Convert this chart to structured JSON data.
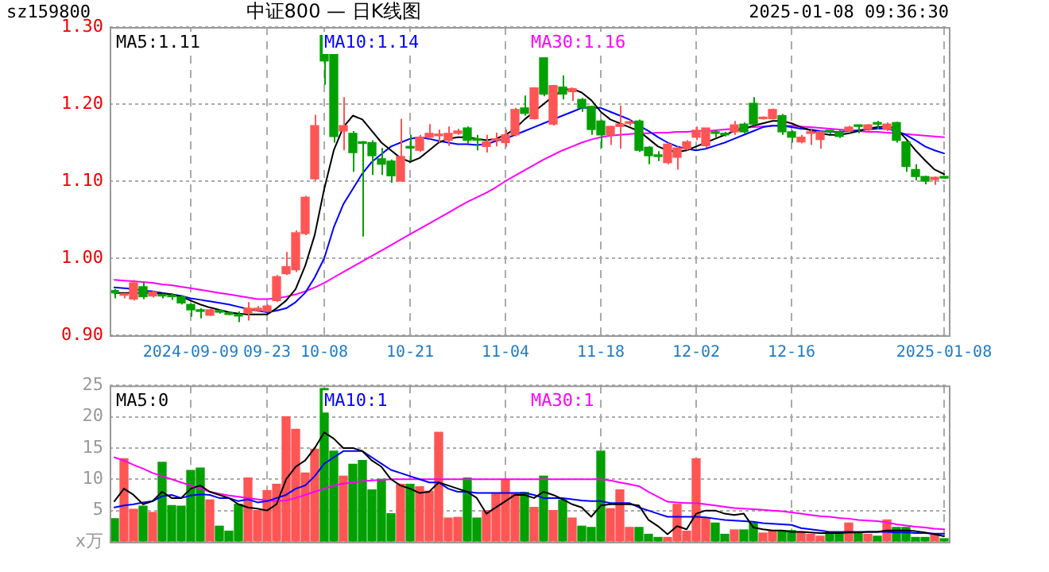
{
  "chart_data": [
    {
      "type": "candlestick",
      "title": "中证800 — 日K线图",
      "annotations": [
        "sz159800",
        "2025-01-08 09:36:30"
      ],
      "categories": [
        null,
        null,
        null,
        null,
        null,
        null,
        null,
        null,
        "2024-09-09",
        null,
        null,
        null,
        null,
        null,
        null,
        null,
        "09-23",
        null,
        null,
        null,
        null,
        null,
        "10-08",
        null,
        null,
        null,
        null,
        null,
        null,
        null,
        null,
        "10-21",
        null,
        null,
        null,
        null,
        null,
        null,
        null,
        null,
        null,
        "11-04",
        null,
        null,
        null,
        null,
        null,
        null,
        null,
        null,
        null,
        "11-18",
        null,
        null,
        null,
        null,
        null,
        null,
        null,
        null,
        null,
        "12-02",
        null,
        null,
        null,
        null,
        null,
        null,
        null,
        null,
        null,
        "12-16",
        null,
        null,
        null,
        null,
        null,
        null,
        null,
        null,
        null,
        null,
        null,
        null,
        null,
        null,
        null,
        "2025-01-08"
      ],
      "ohlc": [
        [
          0.958,
          0.96,
          0.948,
          0.955
        ],
        [
          0.952,
          0.955,
          0.948,
          0.953
        ],
        [
          0.947,
          0.972,
          0.945,
          0.968
        ],
        [
          0.963,
          0.969,
          0.947,
          0.95
        ],
        [
          0.951,
          0.958,
          0.949,
          0.956
        ],
        [
          0.952,
          0.954,
          0.948,
          0.951
        ],
        [
          0.951,
          0.954,
          0.946,
          0.95
        ],
        [
          0.95,
          0.952,
          0.94,
          0.942
        ],
        [
          0.94,
          0.941,
          0.924,
          0.933
        ],
        [
          0.932,
          0.935,
          0.922,
          0.931
        ],
        [
          0.926,
          0.934,
          0.925,
          0.933
        ],
        [
          0.932,
          0.934,
          0.928,
          0.93
        ],
        [
          0.928,
          0.93,
          0.926,
          0.927
        ],
        [
          0.926,
          0.931,
          0.917,
          0.925
        ],
        [
          0.929,
          0.943,
          0.919,
          0.935
        ],
        [
          0.932,
          0.938,
          0.93,
          0.935
        ],
        [
          0.931,
          0.94,
          0.93,
          0.938
        ],
        [
          0.945,
          0.978,
          0.943,
          0.976
        ],
        [
          0.98,
          1.008,
          0.978,
          0.989
        ],
        [
          0.985,
          1.036,
          0.982,
          1.033
        ],
        [
          1.032,
          1.081,
          1.03,
          1.079
        ],
        [
          1.103,
          1.186,
          1.101,
          1.172
        ],
        [
          1.289,
          1.289,
          1.225,
          1.256
        ],
        [
          1.269,
          1.269,
          1.15,
          1.158
        ],
        [
          1.165,
          1.209,
          1.14,
          1.172
        ],
        [
          1.162,
          1.165,
          1.112,
          1.137
        ],
        [
          1.15,
          1.152,
          1.028,
          1.149
        ],
        [
          1.15,
          1.153,
          1.108,
          1.133
        ],
        [
          1.129,
          1.143,
          1.108,
          1.122
        ],
        [
          1.126,
          1.128,
          1.098,
          1.107
        ],
        [
          1.1,
          1.181,
          1.1,
          1.132
        ],
        [
          1.144,
          1.16,
          1.126,
          1.143
        ],
        [
          1.14,
          1.16,
          1.138,
          1.157
        ],
        [
          1.157,
          1.174,
          1.155,
          1.162
        ],
        [
          1.159,
          1.167,
          1.15,
          1.16
        ],
        [
          1.153,
          1.171,
          1.146,
          1.162
        ],
        [
          1.162,
          1.168,
          1.16,
          1.165
        ],
        [
          1.169,
          1.171,
          1.149,
          1.153
        ],
        [
          1.154,
          1.16,
          1.14,
          1.153
        ],
        [
          1.145,
          1.16,
          1.137,
          1.151
        ],
        [
          1.153,
          1.163,
          1.145,
          1.154
        ],
        [
          1.15,
          1.167,
          1.144,
          1.16
        ],
        [
          1.16,
          1.195,
          1.158,
          1.193
        ],
        [
          1.195,
          1.211,
          1.185,
          1.188
        ],
        [
          1.181,
          1.222,
          1.18,
          1.221
        ],
        [
          1.26,
          1.26,
          1.21,
          1.213
        ],
        [
          1.174,
          1.225,
          1.172,
          1.224
        ],
        [
          1.222,
          1.237,
          1.206,
          1.213
        ],
        [
          1.216,
          1.221,
          1.204,
          1.22
        ],
        [
          1.206,
          1.208,
          1.19,
          1.195
        ],
        [
          1.197,
          1.198,
          1.16,
          1.167
        ],
        [
          1.178,
          1.18,
          1.143,
          1.16
        ],
        [
          1.16,
          1.172,
          1.147,
          1.171
        ],
        [
          1.171,
          1.198,
          1.142,
          1.174
        ],
        [
          1.175,
          1.18,
          1.172,
          1.176
        ],
        [
          1.178,
          1.18,
          1.138,
          1.14
        ],
        [
          1.144,
          1.145,
          1.122,
          1.133
        ],
        [
          1.133,
          1.139,
          1.126,
          1.132
        ],
        [
          1.124,
          1.15,
          1.122,
          1.148
        ],
        [
          1.131,
          1.146,
          1.115,
          1.143
        ],
        [
          1.142,
          1.153,
          1.14,
          1.151
        ],
        [
          1.157,
          1.171,
          1.153,
          1.166
        ],
        [
          1.146,
          1.169,
          1.143,
          1.169
        ],
        [
          1.163,
          1.167,
          1.157,
          1.162
        ],
        [
          1.161,
          1.164,
          1.158,
          1.16
        ],
        [
          1.164,
          1.178,
          1.16,
          1.173
        ],
        [
          1.174,
          1.176,
          1.162,
          1.164
        ],
        [
          1.201,
          1.209,
          1.172,
          1.174
        ],
        [
          1.181,
          1.184,
          1.18,
          1.182
        ],
        [
          1.181,
          1.194,
          1.18,
          1.193
        ],
        [
          1.185,
          1.187,
          1.16,
          1.164
        ],
        [
          1.164,
          1.166,
          1.15,
          1.157
        ],
        [
          1.151,
          1.16,
          1.149,
          1.157
        ],
        [
          1.162,
          1.167,
          1.147,
          1.163
        ],
        [
          1.154,
          1.165,
          1.142,
          1.164
        ],
        [
          1.165,
          1.166,
          1.161,
          1.164
        ],
        [
          1.164,
          1.166,
          1.156,
          1.158
        ],
        [
          1.165,
          1.172,
          1.164,
          1.17
        ],
        [
          1.172,
          1.173,
          1.162,
          1.171
        ],
        [
          1.167,
          1.174,
          1.165,
          1.173
        ],
        [
          1.175,
          1.178,
          1.167,
          1.174
        ],
        [
          1.167,
          1.176,
          1.165,
          1.174
        ],
        [
          1.176,
          1.177,
          1.15,
          1.153
        ],
        [
          1.151,
          1.152,
          1.112,
          1.119
        ],
        [
          1.115,
          1.122,
          1.101,
          1.106
        ],
        [
          1.106,
          1.107,
          1.096,
          1.1
        ],
        [
          1.102,
          1.106,
          1.095,
          1.105
        ],
        [
          1.105,
          1.106,
          1.103,
          1.104
        ]
      ],
      "colors": [
        "#00a000",
        "#ff5555",
        "#ff5555",
        "#00a000",
        "#ff5555",
        "#00a000",
        "#00a000",
        "#00a000",
        "#00a000",
        "#00a000",
        "#ff5555",
        "#00a000",
        "#00a000",
        "#00a000",
        "#ff5555",
        "#ff5555",
        "#ff5555",
        "#ff5555",
        "#ff5555",
        "#ff5555",
        "#ff5555",
        "#ff5555",
        "#00a000",
        "#00a000",
        "#ff5555",
        "#00a000",
        "#00a000",
        "#00a000",
        "#00a000",
        "#00a000",
        "#ff5555",
        "#00a000",
        "#ff5555",
        "#ff5555",
        "#ff5555",
        "#ff5555",
        "#ff5555",
        "#00a000",
        "#00a000",
        "#ff5555",
        "#ff5555",
        "#ff5555",
        "#ff5555",
        "#00a000",
        "#ff5555",
        "#00a000",
        "#ff5555",
        "#00a000",
        "#ff5555",
        "#00a000",
        "#00a000",
        "#00a000",
        "#ff5555",
        "#ff5555",
        "#ff5555",
        "#00a000",
        "#00a000",
        "#00a000",
        "#ff5555",
        "#ff5555",
        "#ff5555",
        "#ff5555",
        "#ff5555",
        "#00a000",
        "#00a000",
        "#ff5555",
        "#00a000",
        "#00a000",
        "#ff5555",
        "#ff5555",
        "#00a000",
        "#00a000",
        "#ff5555",
        "#ff5555",
        "#ff5555",
        "#00a000",
        "#00a000",
        "#ff5555",
        "#00a000",
        "#ff5555",
        "#00a000",
        "#ff5555",
        "#00a000",
        "#00a000",
        "#00a000",
        "#00a000",
        "#ff5555",
        "#00a000"
      ],
      "series": [
        {
          "type": "line",
          "name": "MA5:1.11",
          "color": "#000000",
          "values": [
            0.955,
            0.955,
            0.955,
            0.955,
            0.955,
            0.954,
            0.953,
            0.95,
            0.945,
            0.94,
            0.936,
            0.933,
            0.93,
            0.928,
            0.927,
            0.927,
            0.927,
            0.935,
            0.945,
            0.96,
            0.99,
            1.03,
            1.09,
            1.14,
            1.17,
            1.185,
            1.18,
            1.165,
            1.15,
            1.14,
            1.13,
            1.125,
            1.13,
            1.14,
            1.15,
            1.155,
            1.157,
            1.157,
            1.155,
            1.153,
            1.155,
            1.16,
            1.168,
            1.18,
            1.19,
            1.2,
            1.21,
            1.218,
            1.22,
            1.215,
            1.205,
            1.19,
            1.18,
            1.175,
            1.17,
            1.165,
            1.155,
            1.145,
            1.14,
            1.138,
            1.14,
            1.145,
            1.15,
            1.155,
            1.16,
            1.165,
            1.168,
            1.172,
            1.175,
            1.178,
            1.178,
            1.175,
            1.17,
            1.166,
            1.162,
            1.16,
            1.16,
            1.162,
            1.165,
            1.168,
            1.17,
            1.171,
            1.168,
            1.155,
            1.14,
            1.127,
            1.115,
            1.109
          ]
        },
        {
          "type": "line",
          "name": "MA10:1.14",
          "color": "#0000ff",
          "values": [
            0.962,
            0.961,
            0.96,
            0.958,
            0.957,
            0.955,
            0.953,
            0.951,
            0.948,
            0.946,
            0.944,
            0.942,
            0.94,
            0.937,
            0.934,
            0.932,
            0.93,
            0.932,
            0.935,
            0.943,
            0.955,
            0.975,
            1.0,
            1.04,
            1.07,
            1.09,
            1.11,
            1.125,
            1.135,
            1.145,
            1.15,
            1.155,
            1.157,
            1.155,
            1.152,
            1.15,
            1.148,
            1.148,
            1.147,
            1.148,
            1.152,
            1.155,
            1.16,
            1.165,
            1.17,
            1.175,
            1.18,
            1.185,
            1.19,
            1.195,
            1.195,
            1.195,
            1.19,
            1.185,
            1.18,
            1.172,
            1.165,
            1.157,
            1.15,
            1.145,
            1.142,
            1.14,
            1.142,
            1.146,
            1.15,
            1.155,
            1.16,
            1.165,
            1.17,
            1.172,
            1.172,
            1.17,
            1.168,
            1.167,
            1.165,
            1.164,
            1.164,
            1.165,
            1.166,
            1.167,
            1.168,
            1.168,
            1.165,
            1.16,
            1.153,
            1.145,
            1.14,
            1.136
          ]
        },
        {
          "type": "line",
          "name": "MA30:1.16",
          "color": "#ff00ff",
          "values": [
            0.972,
            0.971,
            0.97,
            0.969,
            0.968,
            0.966,
            0.965,
            0.963,
            0.961,
            0.959,
            0.957,
            0.955,
            0.953,
            0.951,
            0.949,
            0.947,
            0.947,
            0.948,
            0.95,
            0.953,
            0.957,
            0.962,
            0.968,
            0.975,
            0.982,
            0.989,
            0.996,
            1.003,
            1.01,
            1.017,
            1.024,
            1.031,
            1.038,
            1.045,
            1.052,
            1.059,
            1.066,
            1.073,
            1.079,
            1.085,
            1.092,
            1.1,
            1.107,
            1.114,
            1.121,
            1.128,
            1.134,
            1.14,
            1.145,
            1.15,
            1.154,
            1.157,
            1.159,
            1.16,
            1.161,
            1.162,
            1.162,
            1.163,
            1.163,
            1.164,
            1.164,
            1.165,
            1.165,
            1.166,
            1.167,
            1.168,
            1.169,
            1.17,
            1.171,
            1.172,
            1.172,
            1.172,
            1.171,
            1.17,
            1.169,
            1.168,
            1.167,
            1.166,
            1.165,
            1.164,
            1.164,
            1.163,
            1.162,
            1.161,
            1.16,
            1.159,
            1.158,
            1.157
          ]
        }
      ],
      "ylim": [
        0.9,
        1.3
      ],
      "yticks": [
        {
          "value": 0.9,
          "label": "0.90"
        },
        {
          "value": 1.0,
          "label": "1.00"
        },
        {
          "value": 1.1,
          "label": "1.10"
        },
        {
          "value": 1.2,
          "label": "1.20"
        },
        {
          "value": 1.3,
          "label": "1.30"
        }
      ],
      "grid": true,
      "legend": "top left"
    },
    {
      "type": "bar",
      "tick_labels": "y",
      "categories": [
        null,
        null,
        null,
        null,
        null,
        null,
        null,
        null,
        null,
        null,
        null,
        null,
        null,
        null,
        null,
        null,
        null,
        null,
        null,
        null,
        null,
        null,
        null,
        null,
        null,
        null,
        null,
        null,
        null,
        null,
        null,
        null,
        null,
        null,
        null,
        null,
        null,
        null,
        null,
        null,
        null,
        null,
        null,
        null,
        null,
        null,
        null,
        null,
        null,
        null,
        null,
        null,
        null,
        null,
        null,
        null,
        null,
        null,
        null,
        null,
        null,
        null,
        null,
        null,
        null,
        null,
        null,
        null,
        null,
        null,
        null,
        null,
        null,
        null,
        null,
        null,
        null,
        null,
        null,
        null,
        null,
        null,
        null,
        null,
        null,
        null,
        null,
        null
      ],
      "values": [
        3.7,
        13.3,
        5.2,
        5.7,
        4.7,
        12.7,
        5.8,
        5.7,
        11.4,
        11.8,
        6.7,
        2.5,
        1.7,
        6.0,
        10.2,
        5.0,
        8.2,
        9.2,
        20,
        18,
        11,
        14.8,
        24.5,
        14.5,
        10.5,
        12.4,
        13,
        8.3,
        10,
        4.5,
        9.2,
        9.2,
        8.8,
        8.1,
        17.5,
        3.8,
        3.9,
        10.2,
        3.8,
        5,
        7.8,
        10,
        7.8,
        7.9,
        5.5,
        10.5,
        5,
        6.7,
        3.8,
        2.5,
        2.3,
        14.5,
        5.3,
        8.3,
        2.3,
        2.3,
        1.2,
        0.7,
        0.7,
        6.0,
        1.7,
        13.3,
        3.8,
        3.0,
        1.2,
        1.9,
        1.9,
        3.0,
        1.4,
        1.8,
        1.8,
        1.8,
        1.6,
        1.2,
        0.9,
        1.4,
        1.4,
        3.0,
        1.4,
        1.2,
        0.9,
        3.5,
        2.3,
        2.3,
        0.7,
        0.7,
        1.2,
        0.5
      ],
      "colors": [
        "#00a000",
        "#ff5555",
        "#ff5555",
        "#00a000",
        "#ff5555",
        "#00a000",
        "#00a000",
        "#00a000",
        "#00a000",
        "#00a000",
        "#ff5555",
        "#00a000",
        "#00a000",
        "#00a000",
        "#ff5555",
        "#ff5555",
        "#ff5555",
        "#ff5555",
        "#ff5555",
        "#ff5555",
        "#ff5555",
        "#ff5555",
        "#00a000",
        "#00a000",
        "#ff5555",
        "#00a000",
        "#00a000",
        "#00a000",
        "#00a000",
        "#00a000",
        "#ff5555",
        "#00a000",
        "#ff5555",
        "#ff5555",
        "#ff5555",
        "#ff5555",
        "#ff5555",
        "#00a000",
        "#00a000",
        "#ff5555",
        "#ff5555",
        "#ff5555",
        "#ff5555",
        "#00a000",
        "#ff5555",
        "#00a000",
        "#ff5555",
        "#00a000",
        "#ff5555",
        "#00a000",
        "#00a000",
        "#00a000",
        "#ff5555",
        "#ff5555",
        "#ff5555",
        "#00a000",
        "#00a000",
        "#00a000",
        "#ff5555",
        "#ff5555",
        "#ff5555",
        "#ff5555",
        "#ff5555",
        "#00a000",
        "#00a000",
        "#ff5555",
        "#00a000",
        "#00a000",
        "#ff5555",
        "#ff5555",
        "#00a000",
        "#00a000",
        "#ff5555",
        "#ff5555",
        "#ff5555",
        "#00a000",
        "#00a000",
        "#ff5555",
        "#00a000",
        "#ff5555",
        "#00a000",
        "#ff5555",
        "#00a000",
        "#00a000",
        "#00a000",
        "#00a000",
        "#ff5555",
        "#00a000"
      ],
      "series": [
        {
          "type": "line",
          "name": "MA5:0",
          "color": "#000000",
          "values": [
            6.5,
            8.5,
            7.5,
            6,
            6.5,
            8,
            7,
            7,
            8.5,
            9,
            8,
            7.5,
            7,
            6,
            5.5,
            5.3,
            5,
            6,
            10,
            12,
            13,
            15,
            17.5,
            16.5,
            15,
            15,
            14.5,
            13,
            12,
            10,
            9,
            8.5,
            7.8,
            8,
            9.5,
            9,
            8.5,
            8,
            7,
            4.5,
            5.5,
            6.5,
            7.5,
            7.5,
            7,
            8,
            7.5,
            6.8,
            6,
            5.5,
            4,
            5.8,
            6,
            6,
            6,
            5.8,
            3.5,
            2.5,
            1.2,
            2.5,
            2,
            4.5,
            5,
            5,
            4.5,
            4.3,
            4.5,
            2.3,
            2,
            1.8,
            1.8,
            1.6,
            1.6,
            1.5,
            1.4,
            1.4,
            1.4,
            1.5,
            1.5,
            1.6,
            1.6,
            1.8,
            1.8,
            1.8,
            1.7,
            1.5,
            1.2,
            0.9
          ]
        },
        {
          "type": "line",
          "name": "MA10:1",
          "color": "#0000ff",
          "values": [
            5.5,
            5.8,
            6,
            6.3,
            6.5,
            7.3,
            7.5,
            7,
            7.4,
            7.6,
            7.5,
            7,
            7,
            6.5,
            6.8,
            6.3,
            6.5,
            7,
            7.5,
            8.5,
            9,
            10.5,
            12.5,
            13.5,
            14.5,
            14.5,
            14.5,
            13.5,
            12.5,
            11.5,
            11,
            10.5,
            10,
            9.5,
            9.5,
            8.5,
            8,
            8,
            7.8,
            7.8,
            7.8,
            7.8,
            7.8,
            7.8,
            7.5,
            7,
            7,
            7,
            6.8,
            6.6,
            6.5,
            6.5,
            6.2,
            6.2,
            6.2,
            5.5,
            5,
            4.5,
            4,
            4,
            4,
            4,
            3.9,
            3.7,
            3.5,
            3.4,
            3.3,
            3.2,
            3,
            2.9,
            2.8,
            2.7,
            2.2,
            2,
            1.8,
            1.6,
            1.6,
            1.6,
            1.6,
            1.6,
            1.6,
            1.6,
            1.5,
            1.5,
            1.4,
            1.4,
            1.3,
            1.3
          ]
        },
        {
          "type": "line",
          "name": "MA30:1",
          "color": "#ff00ff",
          "values": [
            13.5,
            13,
            12.3,
            11.7,
            11,
            10.5,
            10,
            9.5,
            9,
            8.5,
            8,
            7.7,
            7.4,
            7.2,
            7,
            6.8,
            6.6,
            6.5,
            6.6,
            7,
            7.5,
            8,
            8.5,
            9,
            9.3,
            9.5,
            9.7,
            9.8,
            9.9,
            10,
            10,
            10,
            10,
            10,
            10,
            10,
            10,
            10,
            10,
            10,
            10,
            10,
            10,
            10,
            10,
            10,
            10,
            10,
            10,
            10,
            10,
            10,
            9.8,
            9.5,
            9.2,
            8.9,
            8,
            7.2,
            6.4,
            6.3,
            6.2,
            6.2,
            6,
            5.8,
            5.6,
            5.4,
            5.3,
            5.2,
            5.1,
            5,
            4.9,
            4.7,
            4.5,
            4.3,
            4.1,
            4,
            3.8,
            3.7,
            3.5,
            3.4,
            3.3,
            3.1,
            2.8,
            2.6,
            2.4,
            2.3,
            2.1,
            2
          ]
        }
      ],
      "ylim": [
        0,
        25
      ],
      "yticks": [
        {
          "value": 0,
          "label": "x万"
        },
        5,
        10,
        15,
        20,
        25
      ],
      "grid": true,
      "legend": "top left"
    }
  ]
}
